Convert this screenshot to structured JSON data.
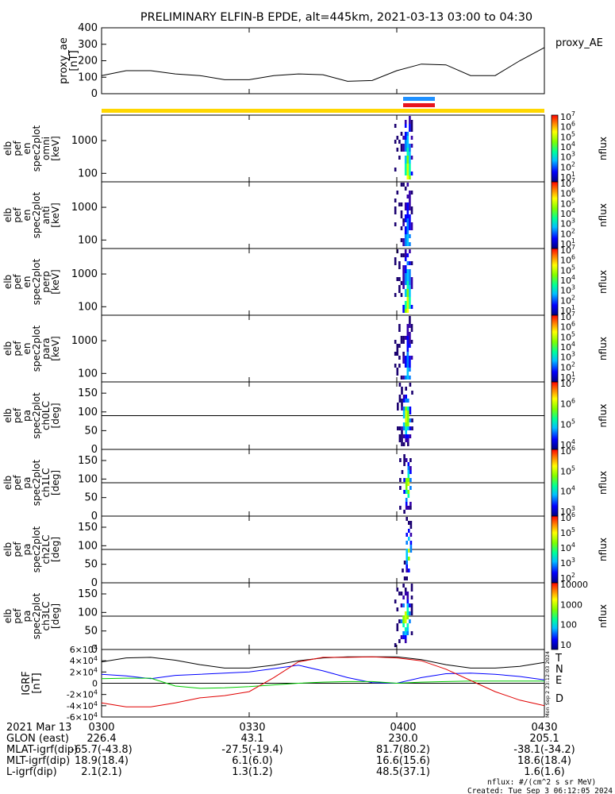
{
  "title": "PRELIMINARY ELFIN-B EPDE, alt=445km, 2021-03-13 03:00 to 04:30",
  "colors": {
    "sat_yellow": "#ffd700",
    "bar_blue": "#1e90ff",
    "bar_red": "#e8141e",
    "T": "#000000",
    "N": "#0000ff",
    "E": "#00cc00",
    "D": "#e00000"
  },
  "chart_data": [
    {
      "type": "line",
      "panel": "proxy_ae",
      "ylabel": "proxy_ae [nT]",
      "legend": "proxy_AE",
      "ylim": [
        0,
        400
      ],
      "yticks": [
        "0",
        "100",
        "200",
        "300",
        "400"
      ],
      "x_minutes": [
        0,
        5,
        10,
        15,
        20,
        25,
        30,
        35,
        40,
        45,
        50,
        55,
        60,
        65,
        70,
        75,
        80,
        85,
        90
      ],
      "values": [
        110,
        140,
        140,
        120,
        110,
        85,
        85,
        110,
        120,
        115,
        75,
        80,
        140,
        180,
        175,
        110,
        110,
        200,
        280
      ]
    },
    {
      "type": "heatmap",
      "panel": "en-omni",
      "ylabel": "elb pef en spec2plot omni [keV]",
      "yscale": "log",
      "yticks": [
        "100",
        "1000"
      ],
      "cbar_label": "nflux",
      "cbar_ticks": [
        "10^1",
        "10^2",
        "10^3",
        "10^4",
        "10^5",
        "10^6",
        "10^7"
      ],
      "active_interval_minutes": [
        59.5,
        63.0
      ],
      "peak_minutes": 62.0
    },
    {
      "type": "heatmap",
      "panel": "en-anti",
      "ylabel": "elb pef en spec2plot anti [keV]",
      "yscale": "log",
      "yticks": [
        "100",
        "1000"
      ],
      "cbar_label": "nflux",
      "cbar_ticks": [
        "10^1",
        "10^2",
        "10^3",
        "10^4",
        "10^5",
        "10^6",
        "10^7"
      ],
      "active_interval_minutes": [
        59.5,
        63.0
      ],
      "peak_minutes": 62.0
    },
    {
      "type": "heatmap",
      "panel": "en-perp",
      "ylabel": "elb pef en spec2plot perp [keV]",
      "yscale": "log",
      "yticks": [
        "100",
        "1000"
      ],
      "cbar_label": "nflux",
      "cbar_ticks": [
        "10^1",
        "10^2",
        "10^3",
        "10^4",
        "10^5",
        "10^6",
        "10^7"
      ],
      "active_interval_minutes": [
        59.5,
        63.0
      ],
      "peak_minutes": 62.0
    },
    {
      "type": "heatmap",
      "panel": "en-para",
      "ylabel": "elb pef en spec2plot para [keV]",
      "yscale": "log",
      "yticks": [
        "100",
        "1000"
      ],
      "cbar_label": "nflux",
      "cbar_ticks": [
        "10^1",
        "10^2",
        "10^3",
        "10^4",
        "10^5",
        "10^6",
        "10^7"
      ],
      "active_interval_minutes": [
        59.5,
        63.0
      ],
      "peak_minutes": 62.0
    },
    {
      "type": "heatmap",
      "panel": "pa-ch0LC",
      "ylabel": "elb pef pa spec2plot ch0LC [deg]",
      "ylim": [
        0,
        180
      ],
      "yticks": [
        "0",
        "50",
        "100",
        "150"
      ],
      "cbar_label": "nflux",
      "cbar_ticks": [
        "10^4",
        "10^5",
        "10^6",
        "10^7"
      ],
      "active_interval_minutes": [
        60.0,
        63.0
      ]
    },
    {
      "type": "heatmap",
      "panel": "pa-ch1LC",
      "ylabel": "elb pef pa spec2plot ch1LC [deg]",
      "ylim": [
        0,
        180
      ],
      "yticks": [
        "0",
        "50",
        "100",
        "150"
      ],
      "cbar_label": "nflux",
      "cbar_ticks": [
        "10^3",
        "10^4",
        "10^5",
        "10^6"
      ],
      "active_interval_minutes": [
        60.5,
        63.0
      ]
    },
    {
      "type": "heatmap",
      "panel": "pa-ch2LC",
      "ylabel": "elb pef pa spec2plot ch2LC [deg]",
      "ylim": [
        0,
        180
      ],
      "yticks": [
        "0",
        "50",
        "100",
        "150"
      ],
      "cbar_label": "nflux",
      "cbar_ticks": [
        "10^2",
        "10^3",
        "10^4",
        "10^5",
        "10^6"
      ],
      "active_interval_minutes": [
        61.0,
        63.0
      ]
    },
    {
      "type": "heatmap",
      "panel": "pa-ch3LC",
      "ylabel": "elb pef pa spec2plot ch3LC [deg]",
      "ylim": [
        0,
        180
      ],
      "yticks": [
        "0",
        "50",
        "100",
        "150"
      ],
      "cbar_label": "nflux",
      "cbar_ticks": [
        "10",
        "100",
        "1000",
        "10000"
      ],
      "active_interval_minutes": [
        59.5,
        63.0
      ]
    },
    {
      "type": "line",
      "panel": "igrf",
      "ylabel": "IGRF [nT]",
      "ylim": [
        -60000,
        60000
      ],
      "yticks": [
        "-6x10^4",
        "-4x10^4",
        "-2x10^4",
        "0",
        "2x10^4",
        "4x10^4",
        "6x10^4"
      ],
      "x_minutes": [
        0,
        5,
        10,
        15,
        20,
        25,
        30,
        35,
        40,
        45,
        50,
        55,
        60,
        65,
        70,
        75,
        80,
        85,
        90
      ],
      "series": [
        {
          "name": "T",
          "values": [
            38000,
            45000,
            46000,
            41000,
            33000,
            27000,
            27000,
            32000,
            40000,
            45000,
            47000,
            47000,
            47000,
            42000,
            33000,
            27000,
            27000,
            30000,
            37000
          ]
        },
        {
          "name": "N",
          "values": [
            16000,
            13000,
            8000,
            14000,
            16000,
            18000,
            20000,
            26000,
            32000,
            22000,
            10000,
            1000,
            0,
            10000,
            17000,
            18000,
            16000,
            12000,
            6000
          ]
        },
        {
          "name": "E",
          "values": [
            8000,
            9000,
            9000,
            -5000,
            -9000,
            -8000,
            -6000,
            -3000,
            0,
            2000,
            3000,
            3000,
            0,
            2000,
            3000,
            4000,
            4000,
            4000,
            4000
          ]
        },
        {
          "name": "D",
          "values": [
            -35000,
            -42000,
            -42000,
            -35000,
            -26000,
            -22000,
            -15000,
            10000,
            38000,
            46000,
            46000,
            47000,
            45000,
            40000,
            25000,
            5000,
            -15000,
            -30000,
            -40000
          ]
        }
      ]
    }
  ],
  "stamp": "Mon Sep  2 23:12:03 2024",
  "legend_words": {
    "T": "T",
    "N": "N",
    "E": "E",
    "D": "D"
  },
  "time_axis": {
    "row_labels": [
      "2021 Mar 13",
      "GLON (east)",
      "MLAT-igrf(dip)",
      "MLT-igrf(dip)",
      "L-igrf(dip)"
    ],
    "columns": [
      {
        "time": "0300",
        "glon": "226.4",
        "mlat": "-65.7(-43.8)",
        "mlt": "18.9(18.4)",
        "l": "2.1(2.1)"
      },
      {
        "time": "0330",
        "glon": "43.1",
        "mlat": "-27.5(-19.4)",
        "mlt": "6.1(6.0)",
        "l": "1.3(1.2)"
      },
      {
        "time": "0400",
        "glon": "230.0",
        "mlat": "81.7(80.2)",
        "mlt": "16.6(15.6)",
        "l": "48.5(37.1)"
      },
      {
        "time": "0430",
        "glon": "205.1",
        "mlat": "-38.1(-34.2)",
        "mlt": "18.6(18.4)",
        "l": "1.6(1.6)"
      }
    ]
  },
  "footer": {
    "units": "nflux: #/(cm^2 s sr MeV)",
    "created": "Created: Tue Sep  3 06:12:05 2024"
  }
}
